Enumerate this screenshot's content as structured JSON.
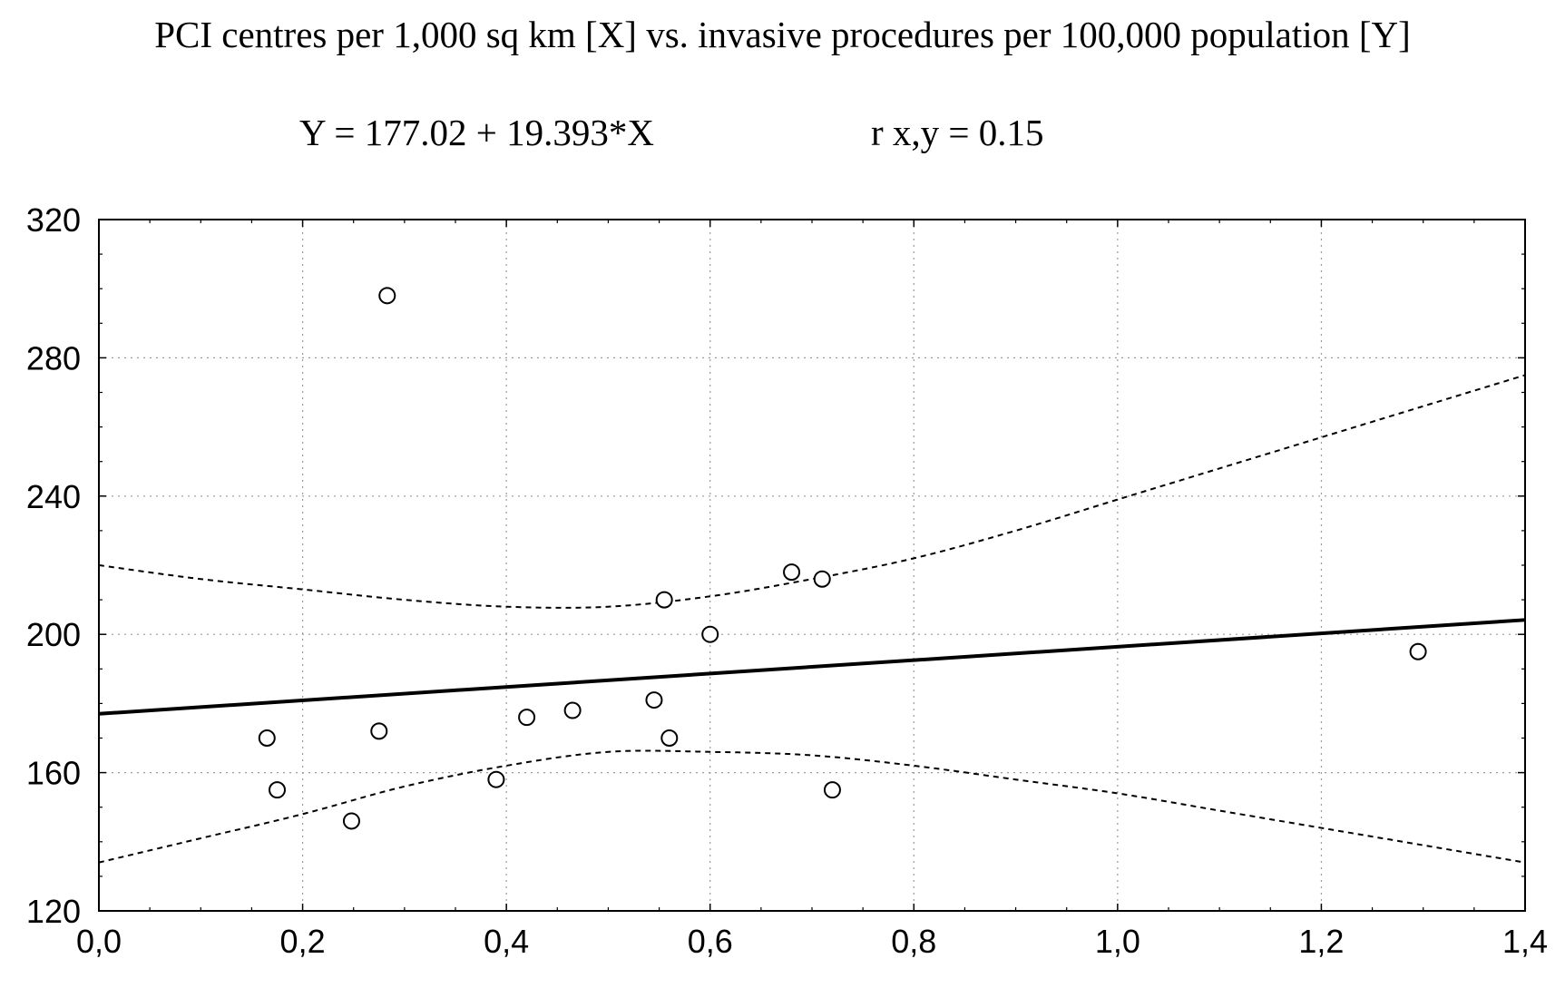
{
  "chart_data": {
    "type": "scatter",
    "title": "PCI centres per 1,000 sq km [X] vs. invasive procedures per 100,000 population [Y]",
    "equation": "Y = 177.02 + 19.393*X",
    "correlation": "r x,y = 0.15",
    "xlabel": "",
    "ylabel": "",
    "xlim": [
      0.0,
      1.4
    ],
    "ylim": [
      120,
      320
    ],
    "x_ticks": [
      0.0,
      0.2,
      0.4,
      0.6,
      0.8,
      1.0,
      1.2,
      1.4
    ],
    "x_tick_labels": [
      "0,0",
      "0,2",
      "0,4",
      "0,6",
      "0,8",
      "1,0",
      "1,2",
      "1,4"
    ],
    "y_ticks": [
      120,
      160,
      200,
      240,
      280,
      320
    ],
    "y_tick_labels": [
      "120",
      "160",
      "200",
      "240",
      "280",
      "320"
    ],
    "grid": true,
    "points": [
      {
        "x": 0.165,
        "y": 170
      },
      {
        "x": 0.175,
        "y": 155
      },
      {
        "x": 0.248,
        "y": 146
      },
      {
        "x": 0.275,
        "y": 172
      },
      {
        "x": 0.283,
        "y": 298
      },
      {
        "x": 0.39,
        "y": 158
      },
      {
        "x": 0.42,
        "y": 176
      },
      {
        "x": 0.465,
        "y": 178
      },
      {
        "x": 0.545,
        "y": 181
      },
      {
        "x": 0.555,
        "y": 210
      },
      {
        "x": 0.56,
        "y": 170
      },
      {
        "x": 0.6,
        "y": 200
      },
      {
        "x": 0.68,
        "y": 218
      },
      {
        "x": 0.71,
        "y": 216
      },
      {
        "x": 0.72,
        "y": 155
      },
      {
        "x": 1.295,
        "y": 195
      }
    ],
    "regression": {
      "intercept": 177.02,
      "slope": 19.393
    },
    "confidence_band": {
      "upper": [
        {
          "x": 0.0,
          "y": 220
        },
        {
          "x": 0.1,
          "y": 216
        },
        {
          "x": 0.2,
          "y": 213
        },
        {
          "x": 0.3,
          "y": 210
        },
        {
          "x": 0.4,
          "y": 208
        },
        {
          "x": 0.5,
          "y": 208
        },
        {
          "x": 0.6,
          "y": 211
        },
        {
          "x": 0.7,
          "y": 216
        },
        {
          "x": 0.8,
          "y": 222
        },
        {
          "x": 0.9,
          "y": 230
        },
        {
          "x": 1.0,
          "y": 239
        },
        {
          "x": 1.1,
          "y": 248
        },
        {
          "x": 1.2,
          "y": 257
        },
        {
          "x": 1.3,
          "y": 266
        },
        {
          "x": 1.4,
          "y": 275
        }
      ],
      "lower": [
        {
          "x": 0.0,
          "y": 134
        },
        {
          "x": 0.1,
          "y": 141
        },
        {
          "x": 0.2,
          "y": 148
        },
        {
          "x": 0.3,
          "y": 156
        },
        {
          "x": 0.4,
          "y": 162
        },
        {
          "x": 0.5,
          "y": 166
        },
        {
          "x": 0.6,
          "y": 166
        },
        {
          "x": 0.7,
          "y": 165
        },
        {
          "x": 0.8,
          "y": 162
        },
        {
          "x": 0.9,
          "y": 158
        },
        {
          "x": 1.0,
          "y": 154
        },
        {
          "x": 1.1,
          "y": 149
        },
        {
          "x": 1.2,
          "y": 144
        },
        {
          "x": 1.3,
          "y": 139
        },
        {
          "x": 1.4,
          "y": 134
        }
      ]
    }
  }
}
